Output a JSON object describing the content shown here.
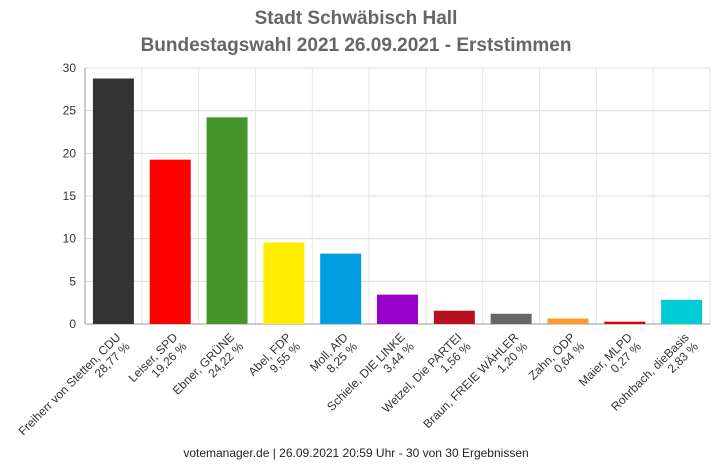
{
  "chart_data": {
    "type": "bar",
    "title": "Stadt Schwäbisch Hall",
    "subtitle": "Bundestagswahl 2021 26.09.2021  - Erststimmen",
    "categories": [
      {
        "name": "Freiherr von Stetten, CDU",
        "pct": "28,77 %"
      },
      {
        "name": "Leiser, SPD",
        "pct": "19,26 %"
      },
      {
        "name": "Ebner, GRÜNE",
        "pct": "24,22 %"
      },
      {
        "name": "Abel, FDP",
        "pct": "9,55 %"
      },
      {
        "name": "Moll, AfD",
        "pct": "8,25 %"
      },
      {
        "name": "Schiele, DIE LINKE",
        "pct": "3,44 %"
      },
      {
        "name": "Wetzel, Die PARTEI",
        "pct": "1,56 %"
      },
      {
        "name": "Braun, FREIE WÄHLER",
        "pct": "1,20 %"
      },
      {
        "name": "Zahn, ÖDP",
        "pct": "0,64 %"
      },
      {
        "name": "Maier, MLPD",
        "pct": "0,27 %"
      },
      {
        "name": "Rohrbach, dieBasis",
        "pct": "2,83 %"
      }
    ],
    "values": [
      28.77,
      19.26,
      24.22,
      9.55,
      8.25,
      3.44,
      1.56,
      1.2,
      0.64,
      0.27,
      2.83
    ],
    "colors": [
      "#333333",
      "#ff0000",
      "#46962b",
      "#ffed00",
      "#009ee0",
      "#9900cc",
      "#b5111e",
      "#666666",
      "#ff9a33",
      "#dd0000",
      "#00ccd4"
    ],
    "ylim": [
      0,
      30
    ],
    "yticks": [
      0,
      5,
      10,
      15,
      20,
      25,
      30
    ],
    "grid": true,
    "legend": "none"
  },
  "footer": "votemanager.de | 26.09.2021 20:59 Uhr - 30 von 30 Ergebnissen"
}
